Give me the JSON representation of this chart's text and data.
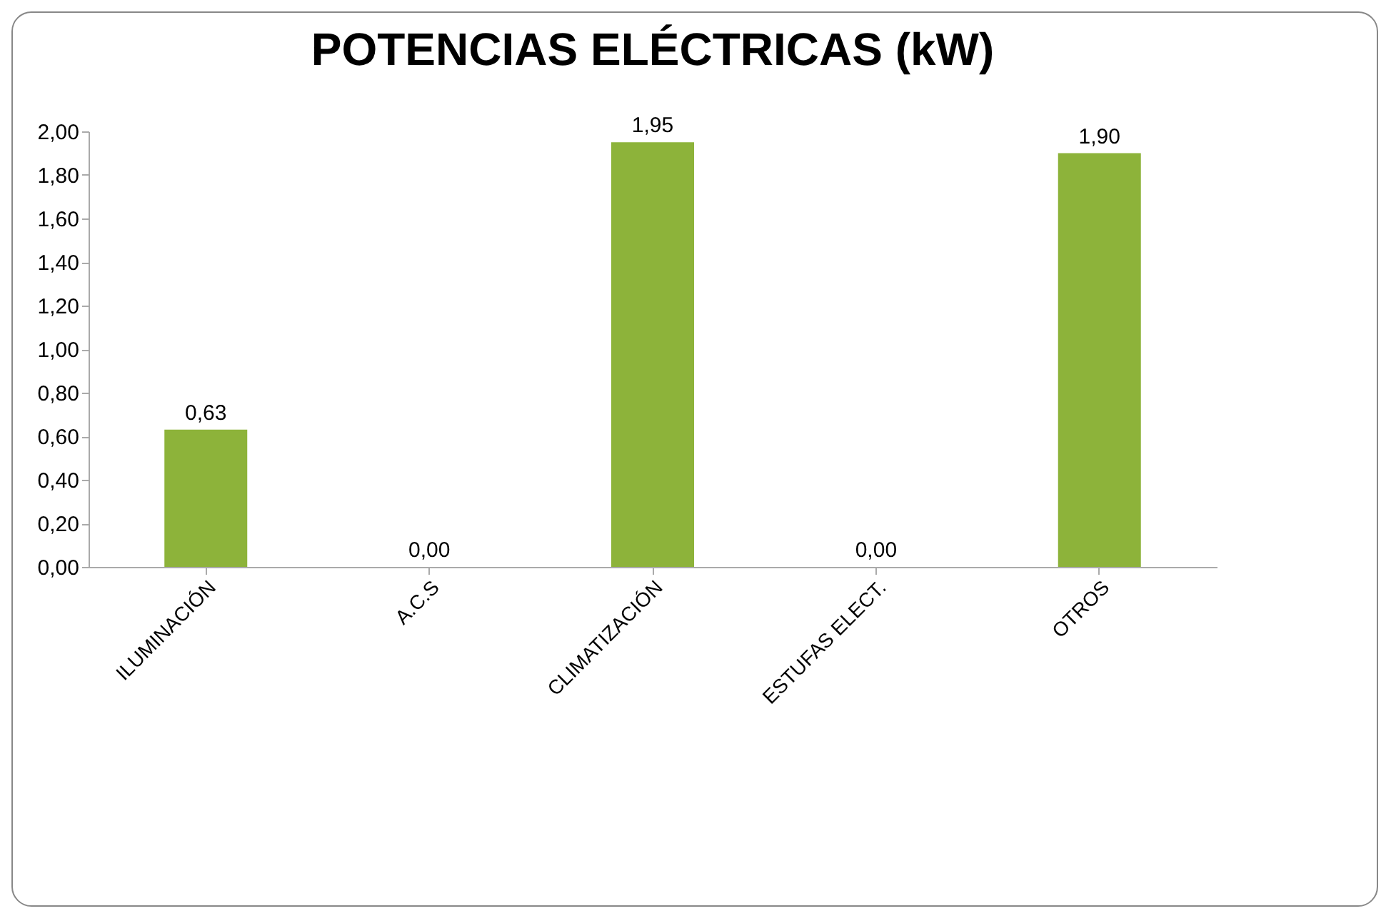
{
  "chart_data": {
    "type": "bar",
    "title": "POTENCIAS ELÉCTRICAS (kW)",
    "categories": [
      "ILUMINACIÓN",
      "A.C.S",
      "CLIMATIZACIÓN",
      "ESTUFAS ELECT.",
      "OTROS"
    ],
    "values": [
      0.63,
      0,
      1.95,
      0,
      1.9
    ],
    "value_labels": [
      "0,63",
      "0,00",
      "1,95",
      "0,00",
      "1,90"
    ],
    "color": "#8db33a",
    "ylim": [
      0,
      2
    ],
    "yticks": [
      {
        "value": 0,
        "label": "0,00"
      },
      {
        "value": 0.2,
        "label": "0,20"
      },
      {
        "value": 0.4,
        "label": "0,40"
      },
      {
        "value": 0.6,
        "label": "0,60"
      },
      {
        "value": 0.8,
        "label": "0,80"
      },
      {
        "value": 1,
        "label": "1,00"
      },
      {
        "value": 1.2,
        "label": "1,20"
      },
      {
        "value": 1.4,
        "label": "1,40"
      },
      {
        "value": 1.6,
        "label": "1,60"
      },
      {
        "value": 1.8,
        "label": "1,80"
      },
      {
        "value": 2,
        "label": "2,00"
      }
    ],
    "grid": false
  }
}
